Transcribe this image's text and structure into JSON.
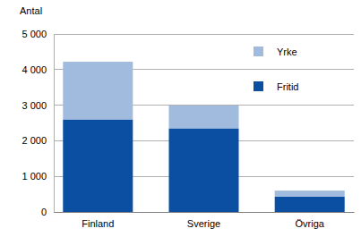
{
  "chart_data": {
    "type": "bar",
    "stacked": true,
    "y_label": "Antal",
    "categories": [
      "Finland",
      "Sverige",
      "Övriga"
    ],
    "series": [
      {
        "name": "Fritid",
        "color": "#0b4fa3",
        "values": [
          2600,
          2350,
          430
        ]
      },
      {
        "name": "Yrke",
        "color": "#a0bbdd",
        "values": [
          1620,
          640,
          170
        ]
      }
    ],
    "ylim": [
      0,
      5000
    ],
    "yticks": [
      0,
      {
        "value": 1000,
        "label": "1 000"
      },
      {
        "value": 2000,
        "label": "2 000"
      },
      {
        "value": 3000,
        "label": "3 000"
      },
      {
        "value": 4000,
        "label": "4 000"
      },
      {
        "value": 5000,
        "label": "5 000"
      }
    ],
    "grid": true,
    "legend": "upper right"
  }
}
